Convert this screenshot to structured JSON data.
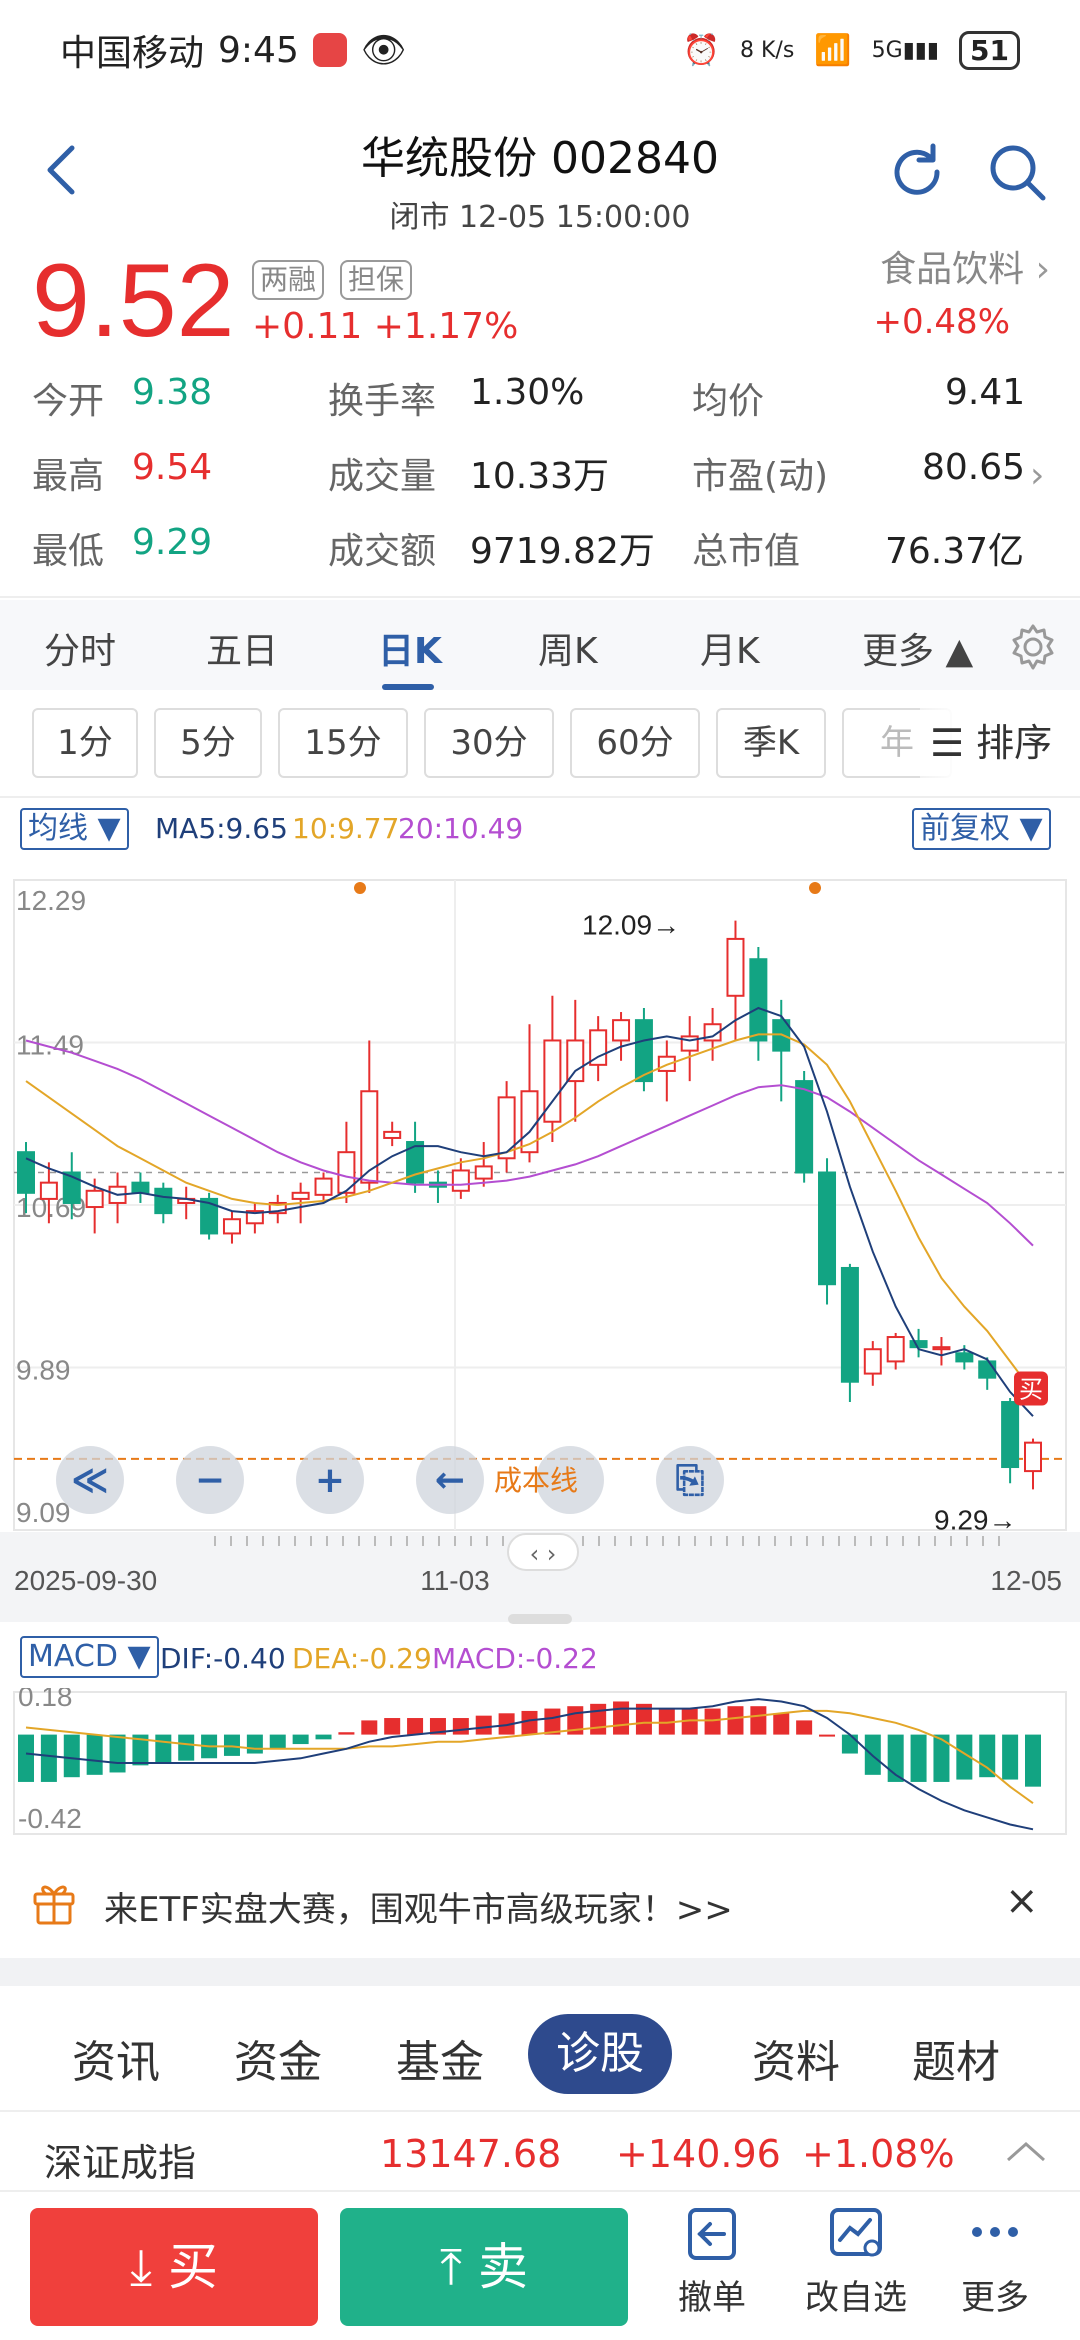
{
  "status": {
    "carrier": "中国移动",
    "time": "9:45",
    "net_speed": "8 K/s",
    "battery": "51"
  },
  "header": {
    "title": "华统股份 002840",
    "subtitle": "闭市 12-05 15:00:00"
  },
  "quote": {
    "price": "9.52",
    "tag1": "两融",
    "tag2": "担保",
    "change": "+0.11  +1.17%",
    "sector_name": "食品饮料",
    "sector_change": "+0.48%"
  },
  "stats": {
    "open_label": "今开",
    "open_value": "9.38",
    "turnover_label": "换手率",
    "turnover_value": "1.30%",
    "avg_label": "均价",
    "avg_value": "9.41",
    "high_label": "最高",
    "high_value": "9.54",
    "volume_label": "成交量",
    "volume_value": "10.33万",
    "pe_label": "市盈(动)",
    "pe_value": "80.65",
    "low_label": "最低",
    "low_value": "9.29",
    "amount_label": "成交额",
    "amount_value": "9719.82万",
    "mcap_label": "总市值",
    "mcap_value": "76.37亿"
  },
  "period_tabs": [
    "分时",
    "五日",
    "日K",
    "周K",
    "月K",
    "更多 ▲"
  ],
  "minute_tabs": [
    "1分",
    "5分",
    "15分",
    "30分",
    "60分",
    "季K",
    "年"
  ],
  "sort_label": "排序",
  "ma": {
    "selector": "均线 ▼",
    "ma5": "MA5:9.65",
    "ma10": "10:9.77",
    "ma20": "20:10.49",
    "adjust": "前复权 ▼"
  },
  "chart_data": {
    "type": "candlestick",
    "y_ticks": [
      "12.29",
      "11.49",
      "10.69",
      "9.89",
      "9.09"
    ],
    "ylim": [
      9.09,
      12.29
    ],
    "x_labels": [
      "2025-09-30",
      "11-03",
      "12-05"
    ],
    "high_annotation": "12.09→",
    "low_annotation": "9.29→",
    "cost_line_label": "成本线",
    "buy_marker": "买",
    "candles": [
      [
        10.95,
        10.75,
        11.0,
        10.65
      ],
      [
        10.72,
        10.8,
        10.9,
        10.6
      ],
      [
        10.85,
        10.7,
        10.95,
        10.62
      ],
      [
        10.68,
        10.76,
        10.82,
        10.55
      ],
      [
        10.7,
        10.78,
        10.85,
        10.6
      ],
      [
        10.8,
        10.75,
        10.85,
        10.7
      ],
      [
        10.77,
        10.65,
        10.8,
        10.6
      ],
      [
        10.7,
        10.72,
        10.78,
        10.62
      ],
      [
        10.72,
        10.55,
        10.75,
        10.52
      ],
      [
        10.55,
        10.62,
        10.66,
        10.5
      ],
      [
        10.6,
        10.66,
        10.7,
        10.55
      ],
      [
        10.65,
        10.7,
        10.74,
        10.6
      ],
      [
        10.72,
        10.75,
        10.8,
        10.6
      ],
      [
        10.74,
        10.82,
        10.85,
        10.7
      ],
      [
        10.75,
        10.95,
        11.1,
        10.7
      ],
      [
        10.8,
        11.25,
        11.5,
        10.75
      ],
      [
        11.02,
        11.05,
        11.1,
        10.98
      ],
      [
        11.0,
        10.8,
        11.1,
        10.75
      ],
      [
        10.8,
        10.78,
        10.86,
        10.7
      ],
      [
        10.76,
        10.86,
        10.92,
        10.72
      ],
      [
        10.82,
        10.88,
        11.0,
        10.78
      ],
      [
        10.92,
        11.22,
        11.3,
        10.85
      ],
      [
        10.95,
        11.25,
        11.58,
        10.9
      ],
      [
        11.1,
        11.5,
        11.72,
        11.0
      ],
      [
        11.3,
        11.5,
        11.7,
        11.1
      ],
      [
        11.38,
        11.55,
        11.62,
        11.3
      ],
      [
        11.5,
        11.6,
        11.64,
        11.4
      ],
      [
        11.6,
        11.3,
        11.66,
        11.25
      ],
      [
        11.35,
        11.42,
        11.5,
        11.2
      ],
      [
        11.45,
        11.52,
        11.62,
        11.3
      ],
      [
        11.5,
        11.58,
        11.66,
        11.4
      ],
      [
        11.72,
        12.0,
        12.09,
        11.5
      ],
      [
        11.9,
        11.5,
        11.96,
        11.4
      ],
      [
        11.6,
        11.45,
        11.7,
        11.2
      ],
      [
        11.3,
        10.85,
        11.35,
        10.8
      ],
      [
        10.85,
        10.3,
        10.92,
        10.2
      ],
      [
        10.38,
        9.82,
        10.4,
        9.72
      ],
      [
        9.86,
        9.98,
        10.02,
        9.8
      ],
      [
        9.92,
        10.04,
        10.06,
        9.88
      ],
      [
        10.02,
        9.99,
        10.08,
        9.94
      ],
      [
        9.98,
        9.99,
        10.04,
        9.9
      ],
      [
        9.96,
        9.92,
        10.0,
        9.88
      ],
      [
        9.92,
        9.84,
        9.94,
        9.78
      ],
      [
        9.72,
        9.4,
        9.74,
        9.32
      ],
      [
        9.38,
        9.52,
        9.54,
        9.29
      ]
    ],
    "ma5": [
      10.92,
      10.87,
      10.83,
      10.78,
      10.74,
      10.75,
      10.73,
      10.72,
      10.7,
      10.66,
      10.65,
      10.66,
      10.68,
      10.7,
      10.76,
      10.86,
      10.93,
      10.98,
      10.98,
      10.95,
      10.93,
      10.95,
      11.05,
      11.2,
      11.35,
      11.42,
      11.47,
      11.5,
      11.52,
      11.5,
      11.52,
      11.6,
      11.66,
      11.62,
      11.47,
      11.15,
      10.78,
      10.46,
      10.19,
      9.98,
      9.95,
      9.98,
      9.93,
      9.77,
      9.65
    ],
    "ma10": [
      11.3,
      11.22,
      11.14,
      11.06,
      10.98,
      10.92,
      10.86,
      10.8,
      10.76,
      10.72,
      10.7,
      10.69,
      10.7,
      10.71,
      10.73,
      10.76,
      10.8,
      10.84,
      10.87,
      10.9,
      10.92,
      10.95,
      10.99,
      11.05,
      11.12,
      11.2,
      11.27,
      11.33,
      11.38,
      11.42,
      11.46,
      11.5,
      11.53,
      11.53,
      11.48,
      11.38,
      11.2,
      10.98,
      10.76,
      10.53,
      10.33,
      10.19,
      10.07,
      9.92,
      9.77
    ],
    "ma20": [
      11.5,
      11.47,
      11.44,
      11.4,
      11.36,
      11.31,
      11.25,
      11.19,
      11.13,
      11.07,
      11.01,
      10.95,
      10.9,
      10.86,
      10.83,
      10.81,
      10.8,
      10.79,
      10.79,
      10.79,
      10.8,
      10.81,
      10.83,
      10.86,
      10.89,
      10.93,
      10.98,
      11.03,
      11.08,
      11.13,
      11.18,
      11.23,
      11.27,
      11.28,
      11.26,
      11.22,
      11.15,
      11.07,
      10.99,
      10.91,
      10.84,
      10.77,
      10.7,
      10.6,
      10.49
    ],
    "macd": {
      "selector": "MACD ▼",
      "dif_label": "DIF:-0.40",
      "dea_label": "DEA:-0.29",
      "macd_label": "MACD:-0.22",
      "y_ticks": [
        "0.18",
        "-0.42"
      ],
      "ylim": [
        -0.42,
        0.18
      ],
      "hist": [
        -0.2,
        -0.2,
        -0.18,
        -0.17,
        -0.16,
        -0.13,
        -0.12,
        -0.11,
        -0.1,
        -0.09,
        -0.08,
        -0.06,
        -0.04,
        -0.02,
        0.01,
        0.06,
        0.07,
        0.07,
        0.07,
        0.07,
        0.08,
        0.09,
        0.1,
        0.11,
        0.12,
        0.13,
        0.14,
        0.13,
        0.11,
        0.11,
        0.11,
        0.12,
        0.12,
        0.09,
        0.06,
        0.0,
        -0.08,
        -0.17,
        -0.2,
        -0.2,
        -0.2,
        -0.19,
        -0.18,
        -0.19,
        -0.22
      ],
      "dif": [
        -0.08,
        -0.09,
        -0.1,
        -0.11,
        -0.12,
        -0.12,
        -0.12,
        -0.12,
        -0.12,
        -0.12,
        -0.12,
        -0.11,
        -0.1,
        -0.08,
        -0.06,
        -0.03,
        -0.01,
        0.0,
        0.01,
        0.02,
        0.03,
        0.04,
        0.06,
        0.07,
        0.09,
        0.1,
        0.11,
        0.11,
        0.11,
        0.11,
        0.12,
        0.14,
        0.15,
        0.14,
        0.12,
        0.07,
        0.0,
        -0.09,
        -0.17,
        -0.23,
        -0.28,
        -0.32,
        -0.35,
        -0.38,
        -0.4
      ],
      "dea": [
        0.03,
        0.02,
        0.01,
        0.0,
        -0.01,
        -0.02,
        -0.03,
        -0.04,
        -0.05,
        -0.05,
        -0.06,
        -0.06,
        -0.06,
        -0.06,
        -0.06,
        -0.05,
        -0.05,
        -0.04,
        -0.03,
        -0.03,
        -0.02,
        -0.01,
        0.0,
        0.01,
        0.02,
        0.03,
        0.04,
        0.05,
        0.05,
        0.06,
        0.06,
        0.07,
        0.08,
        0.09,
        0.1,
        0.1,
        0.09,
        0.07,
        0.05,
        0.02,
        -0.02,
        -0.08,
        -0.14,
        -0.22,
        -0.29
      ]
    }
  },
  "promo": {
    "text": "来ETF实盘大赛，围观牛市高级玩家！>>",
    "close": "×"
  },
  "info_tabs": [
    "资讯",
    "资金",
    "基金",
    "诊股",
    "资料",
    "题材"
  ],
  "index": {
    "name": "深证成指",
    "value": "13147.68",
    "change": "+140.96",
    "pct": "+1.08%"
  },
  "bottom": {
    "buy": "买",
    "sell": "卖",
    "cancel": "撤单",
    "watchlist": "改自选",
    "more": "更多"
  },
  "colors": {
    "up": "#e62e2e",
    "down": "#12a483",
    "accent": "#2f5fa7",
    "ma5": "#1f3f7a",
    "ma10": "#e3a628",
    "ma20": "#b44ed1",
    "cost_line": "#e77a18"
  }
}
